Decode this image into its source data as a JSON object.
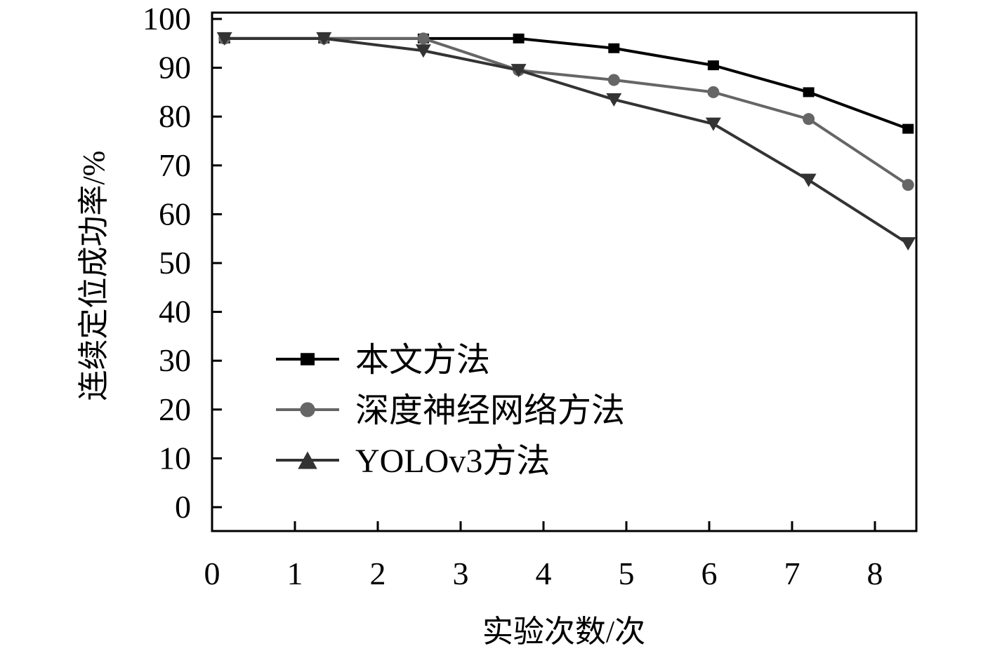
{
  "chart_data": {
    "type": "line",
    "title": "",
    "xlabel": "实验次数/次",
    "ylabel": "连续定位成功率/%",
    "xlim": [
      0,
      8.5
    ],
    "ylim": [
      -5,
      100
    ],
    "xticks": [
      0,
      1,
      2,
      3,
      4,
      5,
      6,
      7,
      8
    ],
    "xtick_labels": [
      "0",
      "1",
      "2",
      "3",
      "4",
      "5",
      "6",
      "7",
      "8"
    ],
    "yticks": [
      0,
      10,
      20,
      30,
      40,
      50,
      60,
      70,
      80,
      90,
      100
    ],
    "ytick_labels": [
      "0",
      "10",
      "20",
      "30",
      "40",
      "50",
      "60",
      "70",
      "80",
      "90",
      "100"
    ],
    "grid": false,
    "legend_position": "lower-left",
    "series": [
      {
        "name": "本文方法",
        "marker": "square",
        "color": "#000000",
        "x": [
          0.15,
          1.35,
          2.55,
          3.7,
          4.85,
          6.05,
          7.2,
          8.4
        ],
        "values": [
          96,
          96,
          96,
          96,
          94,
          90.5,
          85,
          77.5
        ]
      },
      {
        "name": "深度神经网络方法",
        "marker": "circle",
        "color": "#666666",
        "x": [
          0.15,
          1.35,
          2.55,
          3.7,
          4.85,
          6.05,
          7.2,
          8.4
        ],
        "values": [
          96,
          96,
          96,
          89.5,
          87.5,
          85,
          79.5,
          66
        ]
      },
      {
        "name": "YOLOv3方法",
        "marker": "triangle",
        "color": "#333333",
        "x": [
          0.15,
          1.35,
          2.55,
          3.7,
          4.85,
          6.05,
          7.2,
          8.4
        ],
        "values": [
          96,
          96,
          93.5,
          89.5,
          83.5,
          78.5,
          67,
          54
        ]
      }
    ]
  }
}
